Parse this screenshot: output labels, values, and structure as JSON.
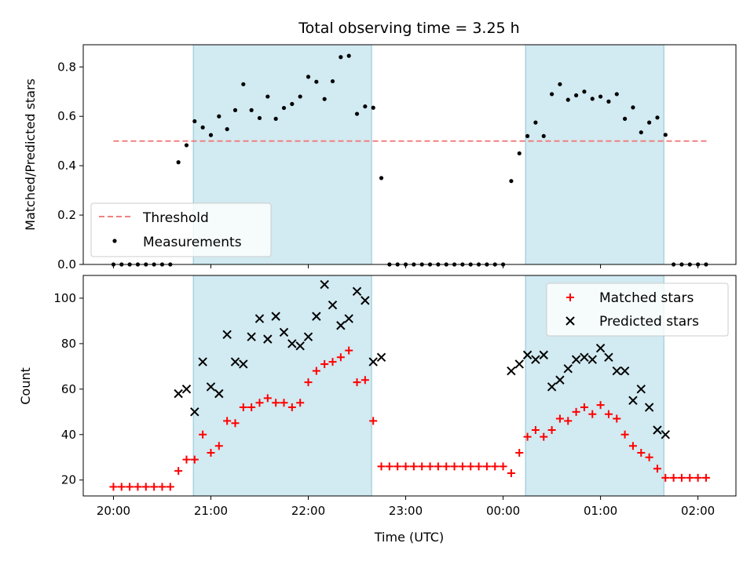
{
  "figure": {
    "title": "Total observing time = 3.25 h"
  },
  "chart_data": [
    {
      "type": "scatter",
      "panel": "top",
      "title": "Total observing time = 3.25 h",
      "xlabel": "",
      "ylabel": "Matched/Predicted stars",
      "x_unit": "hours since 20:00 UTC",
      "xlim": [
        -0.31,
        6.39
      ],
      "ylim": [
        0.0,
        0.89
      ],
      "yticks": [
        "0.0",
        "0.2",
        "0.4",
        "0.6",
        "0.8"
      ],
      "observing_windows": [
        [
          0.82,
          2.65
        ],
        [
          4.23,
          5.65
        ]
      ],
      "window_color": "#add8e6",
      "threshold": {
        "name": "Threshold",
        "value": 0.5,
        "x_range": [
          0.0,
          6.1
        ],
        "color": "#f08080",
        "style": "dashed"
      },
      "series": [
        {
          "name": "Measurements",
          "color": "#000000",
          "marker": "dot",
          "x": [
            0.0,
            0.0833,
            0.1667,
            0.25,
            0.3333,
            0.4167,
            0.5,
            0.5833,
            0.6667,
            0.75,
            0.8333,
            0.9167,
            1.0,
            1.0833,
            1.1667,
            1.25,
            1.3333,
            1.4167,
            1.5,
            1.5833,
            1.6667,
            1.75,
            1.8333,
            1.9167,
            2.0,
            2.0833,
            2.1667,
            2.25,
            2.3333,
            2.4167,
            2.5,
            2.5833,
            2.6667,
            2.75,
            2.8333,
            2.9167,
            3.0,
            3.0833,
            3.1667,
            3.25,
            3.3333,
            3.4167,
            3.5,
            3.5833,
            3.6667,
            3.75,
            3.8333,
            3.9167,
            4.0,
            4.0833,
            4.1667,
            4.25,
            4.3333,
            4.4167,
            4.5,
            4.5833,
            4.6667,
            4.75,
            4.8333,
            4.9167,
            5.0,
            5.0833,
            5.1667,
            5.25,
            5.3333,
            5.4167,
            5.5,
            5.5833,
            5.6667,
            5.75,
            5.8333,
            5.9167,
            6.0,
            6.0833
          ],
          "y": [
            0,
            0,
            0,
            0,
            0,
            0,
            0,
            0,
            0.414,
            0.483,
            0.58,
            0.555,
            0.524,
            0.6,
            0.548,
            0.625,
            0.73,
            0.625,
            0.593,
            0.68,
            0.59,
            0.634,
            0.65,
            0.68,
            0.76,
            0.74,
            0.67,
            0.742,
            0.84,
            0.845,
            0.61,
            0.64,
            0.635,
            0.35,
            0,
            0,
            0,
            0,
            0,
            0,
            0,
            0,
            0,
            0,
            0,
            0,
            0,
            0,
            0,
            0.338,
            0.45,
            0.52,
            0.575,
            0.52,
            0.69,
            0.73,
            0.667,
            0.685,
            0.7,
            0.671,
            0.68,
            0.66,
            0.69,
            0.59,
            0.636,
            0.535,
            0.575,
            0.595,
            0.525,
            0,
            0,
            0,
            0,
            0
          ]
        }
      ],
      "legend": {
        "placement": "lower-left",
        "entries": [
          "Threshold",
          "Measurements"
        ]
      }
    },
    {
      "type": "scatter",
      "panel": "bottom",
      "xlabel": "Time (UTC)",
      "ylabel": "Count",
      "x_unit": "hours since 20:00 UTC",
      "xlim": [
        -0.31,
        6.39
      ],
      "ylim": [
        13,
        110
      ],
      "yticks": [
        "20",
        "40",
        "60",
        "80",
        "100"
      ],
      "xticks": [
        {
          "x": 0,
          "label": "20:00"
        },
        {
          "x": 1,
          "label": "21:00"
        },
        {
          "x": 2,
          "label": "22:00"
        },
        {
          "x": 3,
          "label": "23:00"
        },
        {
          "x": 4,
          "label": "00:00"
        },
        {
          "x": 5,
          "label": "01:00"
        },
        {
          "x": 6,
          "label": "02:00"
        }
      ],
      "observing_windows": [
        [
          0.82,
          2.65
        ],
        [
          4.23,
          5.65
        ]
      ],
      "window_color": "#add8e6",
      "series": [
        {
          "name": "Matched stars",
          "color": "#ff0000",
          "marker": "plus",
          "x": [
            0.0,
            0.0833,
            0.1667,
            0.25,
            0.3333,
            0.4167,
            0.5,
            0.5833,
            0.6667,
            0.75,
            0.8333,
            0.9167,
            1.0,
            1.0833,
            1.1667,
            1.25,
            1.3333,
            1.4167,
            1.5,
            1.5833,
            1.6667,
            1.75,
            1.8333,
            1.9167,
            2.0,
            2.0833,
            2.1667,
            2.25,
            2.3333,
            2.4167,
            2.5,
            2.5833,
            2.6667,
            2.75,
            2.8333,
            2.9167,
            3.0,
            3.0833,
            3.1667,
            3.25,
            3.3333,
            3.4167,
            3.5,
            3.5833,
            3.6667,
            3.75,
            3.8333,
            3.9167,
            4.0,
            4.0833,
            4.1667,
            4.25,
            4.3333,
            4.4167,
            4.5,
            4.5833,
            4.6667,
            4.75,
            4.8333,
            4.9167,
            5.0,
            5.0833,
            5.1667,
            5.25,
            5.3333,
            5.4167,
            5.5,
            5.5833,
            5.6667,
            5.75,
            5.8333,
            5.9167,
            6.0,
            6.0833
          ],
          "y": [
            17,
            17,
            17,
            17,
            17,
            17,
            17,
            17,
            24,
            29,
            29,
            40,
            32,
            35,
            46,
            45,
            52,
            52,
            54,
            56,
            54,
            54,
            52,
            54,
            63,
            68,
            71,
            72,
            74,
            77,
            63,
            64,
            46,
            26,
            26,
            26,
            26,
            26,
            26,
            26,
            26,
            26,
            26,
            26,
            26,
            26,
            26,
            26,
            26,
            23,
            32,
            39,
            42,
            39,
            42,
            47,
            46,
            50,
            52,
            49,
            53,
            49,
            47,
            40,
            35,
            32,
            30,
            25,
            21,
            21,
            21,
            21,
            21,
            21
          ]
        },
        {
          "name": "Predicted stars",
          "color": "#000000",
          "marker": "x",
          "x": [
            0.6667,
            0.75,
            0.8333,
            0.9167,
            1.0,
            1.0833,
            1.1667,
            1.25,
            1.3333,
            1.4167,
            1.5,
            1.5833,
            1.6667,
            1.75,
            1.8333,
            1.9167,
            2.0,
            2.0833,
            2.1667,
            2.25,
            2.3333,
            2.4167,
            2.5,
            2.5833,
            2.6667,
            2.75,
            4.0833,
            4.1667,
            4.25,
            4.3333,
            4.4167,
            4.5,
            4.5833,
            4.6667,
            4.75,
            4.8333,
            4.9167,
            5.0,
            5.0833,
            5.1667,
            5.25,
            5.3333,
            5.4167,
            5.5,
            5.5833,
            5.6667
          ],
          "y": [
            58,
            60,
            50,
            72,
            61,
            58,
            84,
            72,
            71,
            83,
            91,
            82,
            92,
            85,
            80,
            79,
            83,
            92,
            106,
            97,
            88,
            91,
            103,
            99,
            72,
            74,
            68,
            71,
            75,
            73,
            75,
            61,
            64,
            69,
            73,
            74,
            73,
            78,
            74,
            68,
            68,
            55,
            60,
            52,
            42,
            40
          ]
        }
      ],
      "legend": {
        "placement": "upper-right",
        "entries": [
          "Matched stars",
          "Predicted stars"
        ]
      }
    }
  ]
}
